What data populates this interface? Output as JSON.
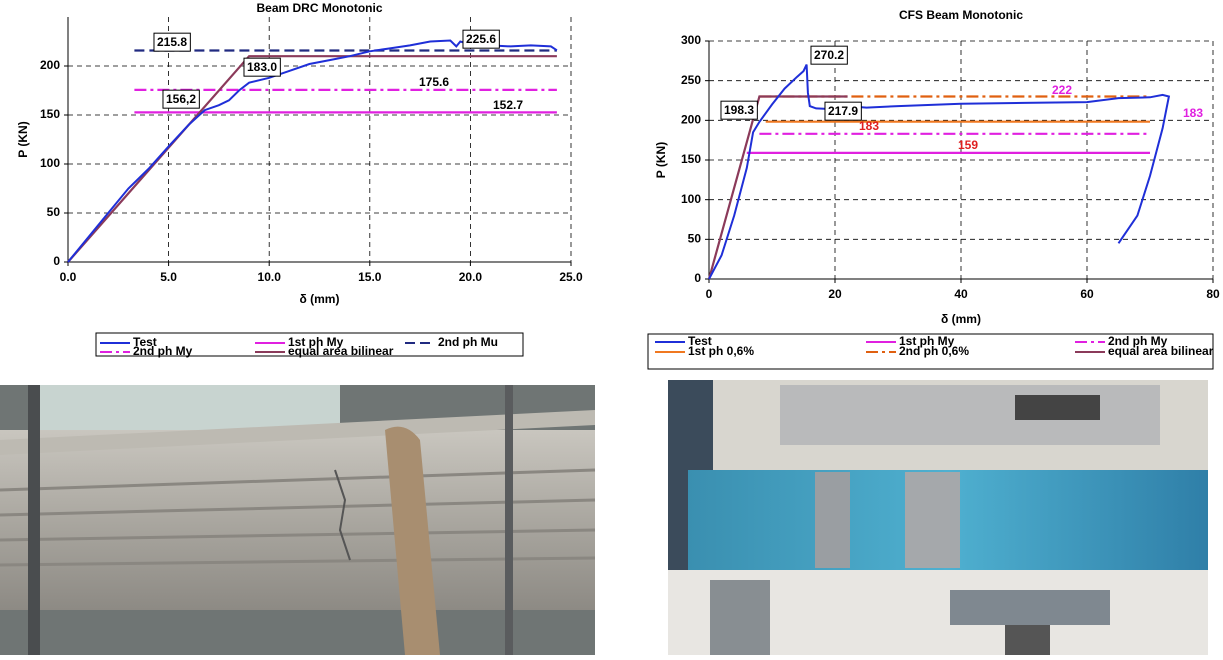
{
  "chart_data": [
    {
      "type": "line",
      "title": "Beam DRC Monotonic",
      "x_label": "δ (mm)",
      "y_label": "P (KN)",
      "grid": true,
      "xlim": [
        0,
        25
      ],
      "xticks": [
        {
          "value": 0,
          "label": "0.0"
        },
        {
          "value": 5,
          "label": "5.0"
        },
        {
          "value": 10,
          "label": "10.0"
        },
        {
          "value": 15,
          "label": "15.0"
        },
        {
          "value": 20,
          "label": "20.0"
        },
        {
          "value": 25,
          "label": "25.0"
        }
      ],
      "ylim": [
        0,
        250
      ],
      "yticks": [
        0,
        50,
        100,
        150,
        200
      ],
      "series": [
        {
          "name": "Test",
          "color": "#1f2fd8",
          "style": "solid",
          "x": [
            0,
            2,
            3,
            4,
            5,
            6,
            6.8,
            7.5,
            8,
            8.5,
            9,
            10,
            11,
            12,
            13,
            14,
            15,
            16,
            17,
            18,
            19,
            19.3,
            19.5,
            20,
            21,
            22,
            23,
            24,
            24.3
          ],
          "values": [
            0,
            50,
            75,
            95,
            118,
            140,
            155,
            160,
            165,
            175,
            183,
            188,
            195,
            202,
            206,
            210,
            215,
            218,
            221,
            225,
            226,
            220,
            225,
            222,
            221,
            220,
            221,
            220,
            216
          ]
        },
        {
          "name": "1st ph My",
          "color": "#e020e0",
          "style": "solid",
          "x": [
            3.3,
            24.3
          ],
          "values": [
            152.7,
            152.7
          ]
        },
        {
          "name": "2nd ph Mu",
          "color": "#202a80",
          "style": "dash",
          "x": [
            3.3,
            24.3
          ],
          "values": [
            215.8,
            215.8
          ]
        },
        {
          "name": "2nd ph My",
          "color": "#e020e0",
          "style": "dashdot",
          "x": [
            3.3,
            24.3
          ],
          "values": [
            175.6,
            175.6
          ]
        },
        {
          "name": "equal area bilinear",
          "color": "#8b3a5a",
          "style": "solid",
          "x": [
            0,
            9,
            24.3
          ],
          "values": [
            0,
            210,
            210
          ]
        }
      ],
      "annotations": [
        {
          "text": "215.8",
          "boxed": true,
          "color": "#000000"
        },
        {
          "text": "225.6",
          "boxed": true,
          "color": "#000000"
        },
        {
          "text": "183.0",
          "boxed": true,
          "color": "#000000"
        },
        {
          "text": "175.6",
          "boxed": false,
          "color": "#000000"
        },
        {
          "text": "156,2",
          "boxed": true,
          "color": "#000000"
        },
        {
          "text": "152.7",
          "boxed": false,
          "color": "#000000"
        }
      ]
    },
    {
      "type": "line",
      "title": "CFS Beam Monotonic",
      "x_label": "δ (mm)",
      "y_label": "P (KN)",
      "grid": true,
      "xlim": [
        0,
        80
      ],
      "xticks": [
        0,
        20,
        40,
        60,
        80
      ],
      "ylim": [
        0,
        300
      ],
      "yticks": [
        0,
        50,
        100,
        150,
        200,
        250,
        300
      ],
      "series": [
        {
          "name": "Test",
          "color": "#1f2fd8",
          "style": "solid",
          "x": [
            0,
            2,
            4,
            6,
            7,
            8,
            10,
            12,
            14,
            15,
            15.5,
            15.7,
            16,
            17,
            20,
            22,
            25,
            30,
            40,
            50,
            60,
            65,
            70,
            72,
            73,
            72,
            70,
            68,
            65
          ],
          "values": [
            0,
            30,
            80,
            140,
            185,
            198,
            220,
            240,
            255,
            262,
            270.2,
            235,
            218,
            215,
            214,
            218,
            216,
            218,
            221,
            222,
            223,
            228,
            229,
            232,
            230,
            190,
            130,
            80,
            45
          ]
        },
        {
          "name": "1st ph My",
          "color": "#e020e0",
          "style": "solid",
          "x": [
            6,
            70
          ],
          "values": [
            159,
            159
          ]
        },
        {
          "name": "2nd ph My",
          "color": "#e020e0",
          "style": "dashdot",
          "x": [
            8,
            70
          ],
          "values": [
            183,
            183
          ]
        },
        {
          "name": "1st ph 0,6%",
          "color": "#f07820",
          "style": "solid",
          "x": [
            9,
            70
          ],
          "values": [
            198.3,
            198.3
          ]
        },
        {
          "name": "2nd ph 0,6%",
          "color": "#e06010",
          "style": "dashdot",
          "x": [
            8,
            70
          ],
          "values": [
            230,
            230
          ]
        },
        {
          "name": "equal area bilinear",
          "color": "#8b3a5a",
          "style": "solid",
          "x": [
            0,
            8,
            22
          ],
          "values": [
            0,
            230,
            230
          ]
        }
      ],
      "annotations": [
        {
          "text": "270.2",
          "boxed": true,
          "color": "#000000"
        },
        {
          "text": "222",
          "boxed": false,
          "color": "#e020e0"
        },
        {
          "text": "183",
          "boxed": false,
          "color": "#e020e0"
        },
        {
          "text": "198.3",
          "boxed": true,
          "color": "#000000"
        },
        {
          "text": "217.9",
          "boxed": true,
          "color": "#000000"
        },
        {
          "text": "183",
          "boxed": false,
          "color": "#e02020"
        },
        {
          "text": "159",
          "boxed": false,
          "color": "#e02020"
        }
      ]
    }
  ]
}
